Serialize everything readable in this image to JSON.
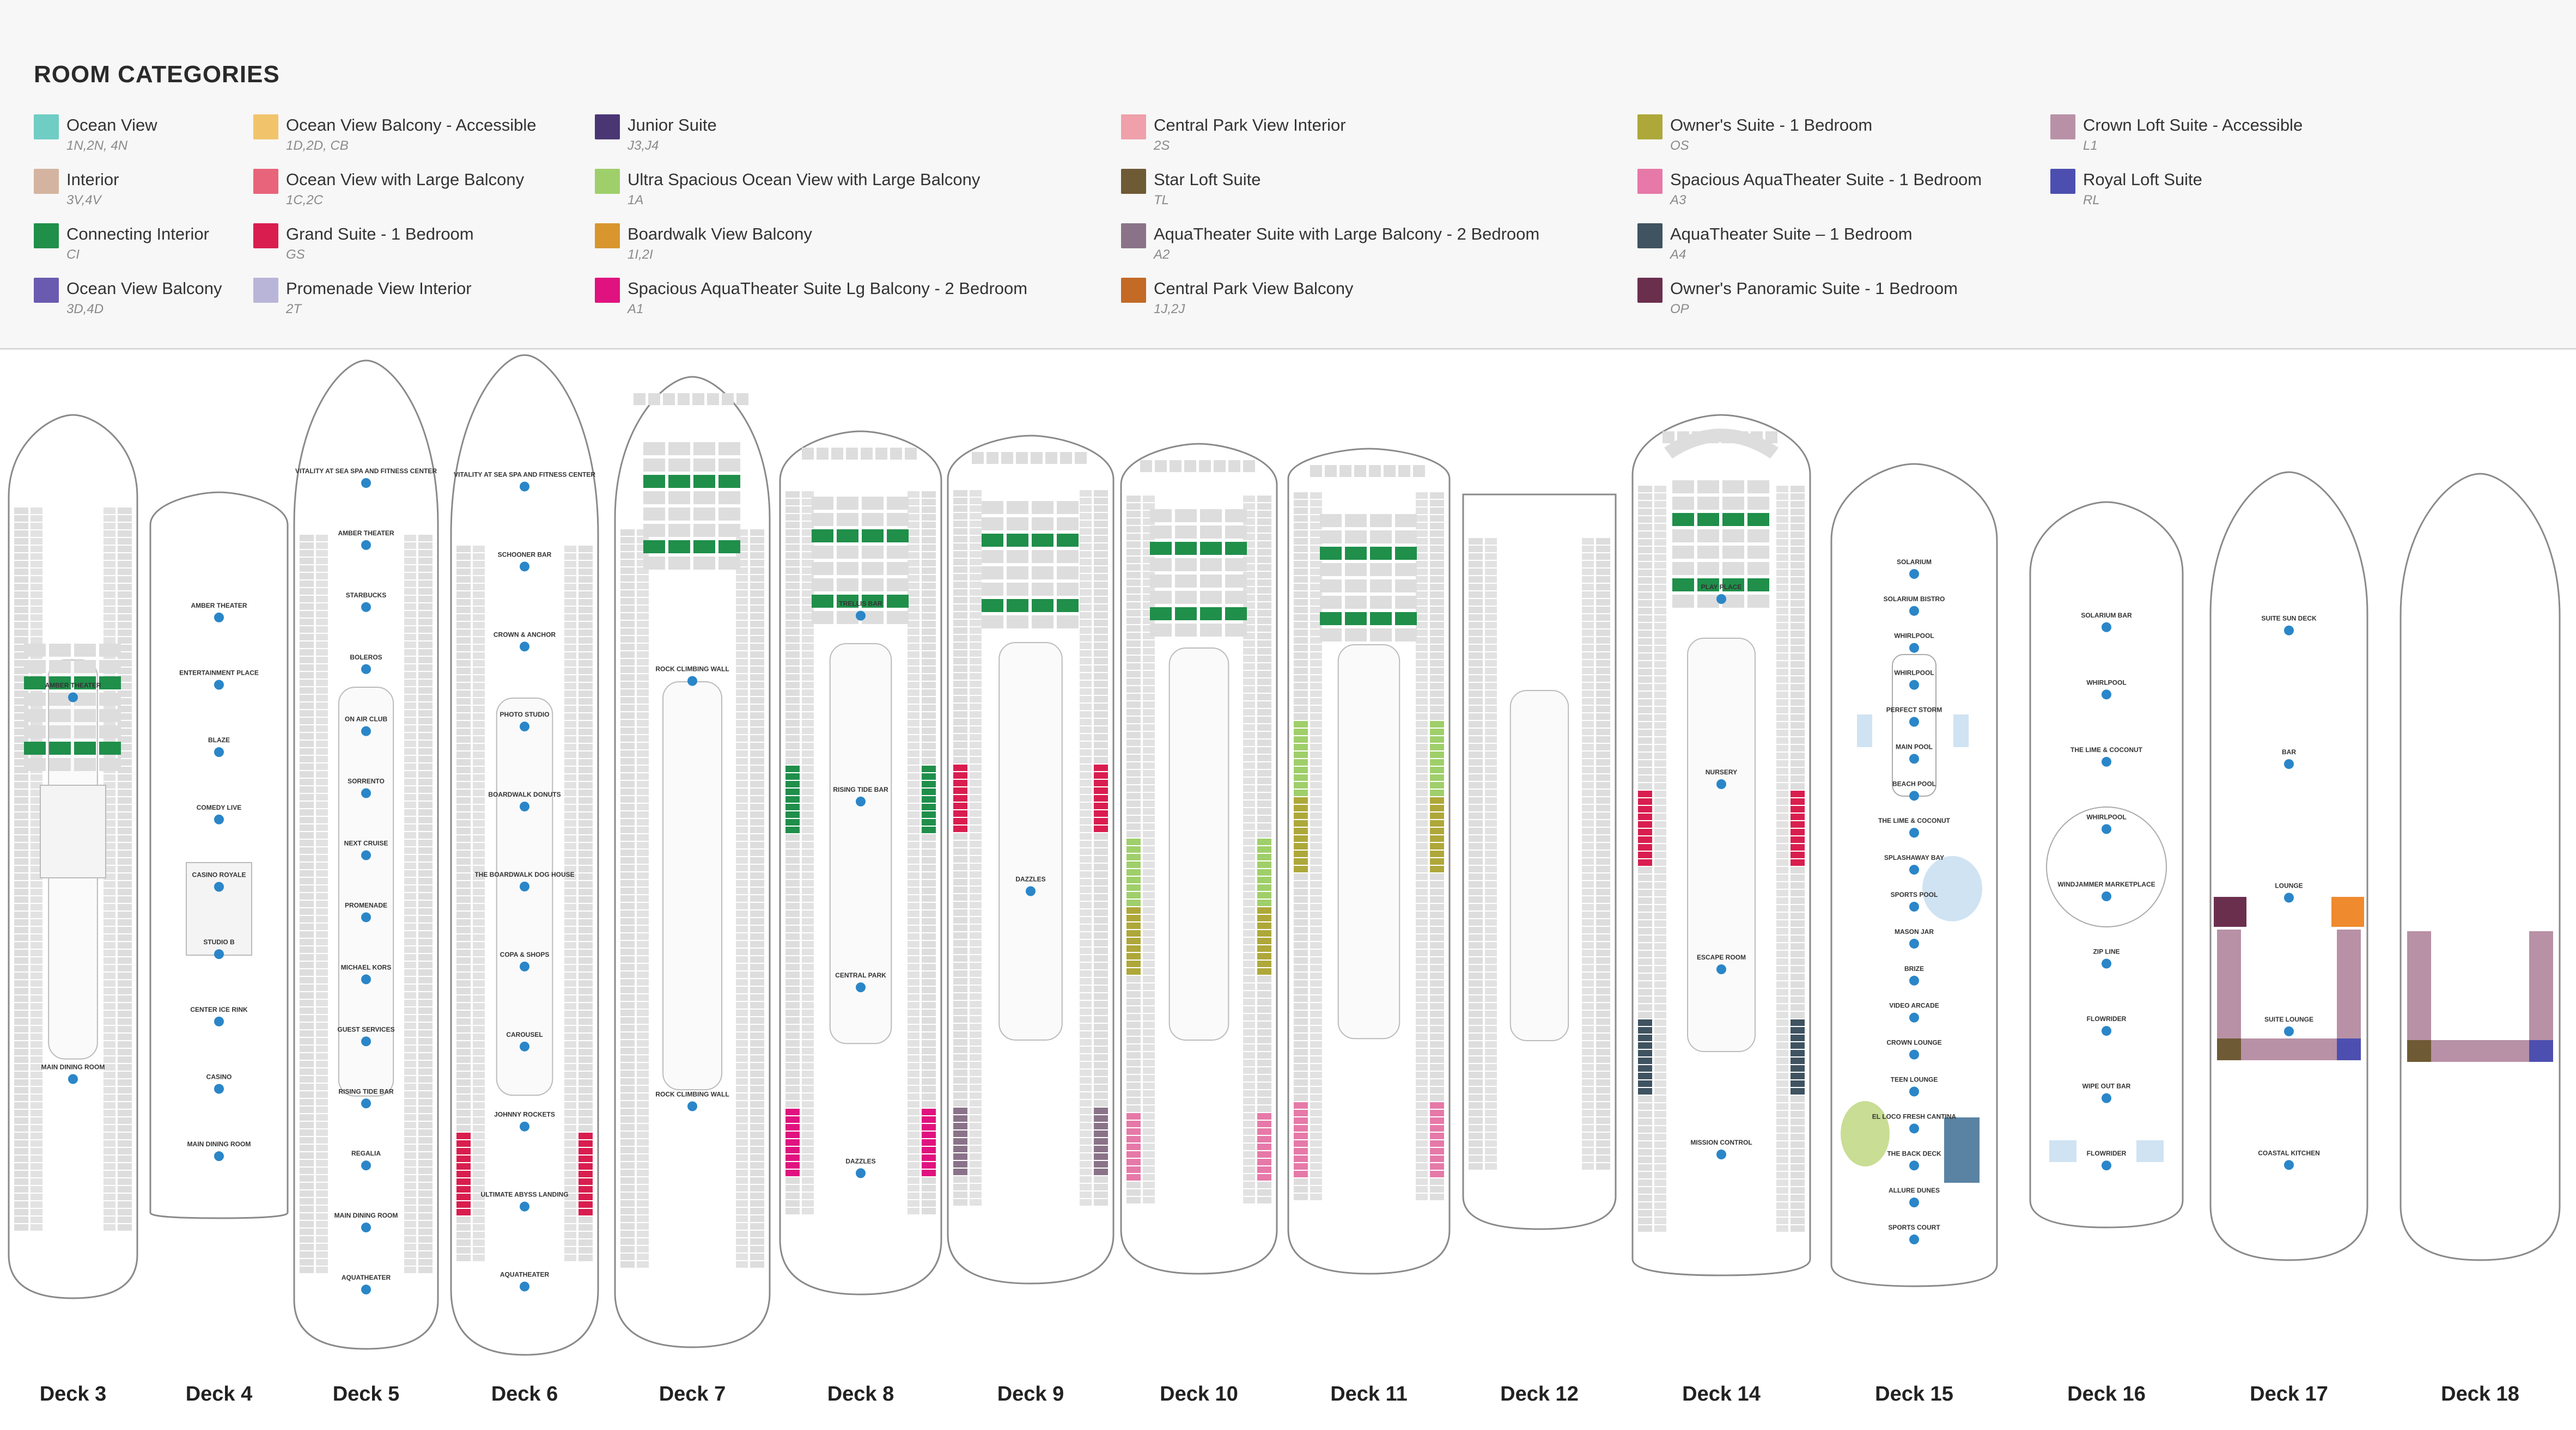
{
  "legend": {
    "title": "ROOM CATEGORIES",
    "categories": [
      {
        "name": "Ocean View",
        "code": "1N,2N, 4N",
        "color": "#6fcdc4"
      },
      {
        "name": "Interior",
        "code": "3V,4V",
        "color": "#d4b4a0"
      },
      {
        "name": "Connecting Interior",
        "code": "CI",
        "color": "#1f8f4a"
      },
      {
        "name": "Ocean View Balcony",
        "code": "3D,4D",
        "color": "#6a5bb0"
      },
      {
        "name": "Ocean View Balcony - Accessible",
        "code": "1D,2D, CB",
        "color": "#f1c46c"
      },
      {
        "name": "Ocean View with Large Balcony",
        "code": "1C,2C",
        "color": "#e8647a"
      },
      {
        "name": "Grand Suite - 1 Bedroom",
        "code": "GS",
        "color": "#d91e4f"
      },
      {
        "name": "Promenade View Interior",
        "code": "2T",
        "color": "#b9b5d8"
      },
      {
        "name": "Junior Suite",
        "code": "J3,J4",
        "color": "#4b3674"
      },
      {
        "name": "Ultra Spacious Ocean View with Large Balcony",
        "code": "1A",
        "color": "#9fcf6a"
      },
      {
        "name": "Boardwalk View Balcony",
        "code": "1I,2I",
        "color": "#d9962f"
      },
      {
        "name": "Spacious AquaTheater Suite Lg Balcony - 2 Bedroom",
        "code": "A1",
        "color": "#e0127f"
      },
      {
        "name": "Central Park View Interior",
        "code": "2S",
        "color": "#efa0aa"
      },
      {
        "name": "Star Loft Suite",
        "code": "TL",
        "color": "#6e5a35"
      },
      {
        "name": "AquaTheater Suite with Large Balcony - 2 Bedroom",
        "code": "A2",
        "color": "#8a7389"
      },
      {
        "name": "Central Park View Balcony",
        "code": "1J,2J",
        "color": "#c26a26"
      },
      {
        "name": "Owner's Suite - 1 Bedroom",
        "code": "OS",
        "color": "#aea83a"
      },
      {
        "name": "Spacious AquaTheater Suite - 1 Bedroom",
        "code": "A3",
        "color": "#e679a8"
      },
      {
        "name": "AquaTheater Suite – 1 Bedroom",
        "code": "A4",
        "color": "#3f5360"
      },
      {
        "name": "Owner's Panoramic Suite - 1 Bedroom",
        "code": "OP",
        "color": "#6b2f4e"
      },
      {
        "name": "Crown Loft Suite - Accessible",
        "code": "L1",
        "color": "#b891a6"
      },
      {
        "name": "Royal Loft Suite",
        "code": "RL",
        "color": "#4d4fb0"
      }
    ]
  },
  "decks": [
    {
      "label": "Deck 3",
      "places": [
        "AMBER THEATER",
        "MAIN DINING ROOM"
      ]
    },
    {
      "label": "Deck 4",
      "places": [
        "AMBER THEATER",
        "ENTERTAINMENT PLACE",
        "BLAZE",
        "COMEDY LIVE",
        "CASINO ROYALE",
        "STUDIO B",
        "CENTER ICE RINK",
        "CASINO",
        "MAIN DINING ROOM"
      ]
    },
    {
      "label": "Deck 5",
      "places": [
        "VITALITY AT SEA SPA AND FITNESS CENTER",
        "AMBER THEATER",
        "STARBUCKS",
        "BOLEROS",
        "ON AIR CLUB",
        "SORRENTO",
        "NEXT CRUISE",
        "PROMENADE",
        "MICHAEL KORS",
        "GUEST SERVICES",
        "RISING TIDE BAR",
        "REGALIA",
        "MAIN DINING ROOM",
        "AQUATHEATER"
      ]
    },
    {
      "label": "Deck 6",
      "places": [
        "VITALITY AT SEA SPA AND FITNESS CENTER",
        "SCHOONER BAR",
        "CROWN & ANCHOR",
        "PHOTO STUDIO",
        "BOARDWALK DONUTS",
        "THE BOARDWALK DOG HOUSE",
        "COPA & SHOPS",
        "CAROUSEL",
        "JOHNNY ROCKETS",
        "ULTIMATE ABYSS LANDING",
        "AQUATHEATER"
      ]
    },
    {
      "label": "Deck 7",
      "places": [
        "ROCK CLIMBING WALL",
        "ROCK CLIMBING WALL"
      ]
    },
    {
      "label": "Deck 8",
      "places": [
        "TRELLIS BAR",
        "RISING TIDE BAR",
        "CENTRAL PARK",
        "DAZZLES"
      ]
    },
    {
      "label": "Deck 9",
      "places": [
        "DAZZLES"
      ]
    },
    {
      "label": "Deck 10",
      "places": []
    },
    {
      "label": "Deck 11",
      "places": []
    },
    {
      "label": "Deck 12",
      "places": []
    },
    {
      "label": "Deck 14",
      "places": [
        "PLAY PLACE",
        "NURSERY",
        "ESCAPE ROOM",
        "MISSION CONTROL"
      ]
    },
    {
      "label": "Deck 15",
      "places": [
        "SOLARIUM",
        "SOLARIUM BISTRO",
        "WHIRLPOOL",
        "WHIRLPOOL",
        "PERFECT STORM",
        "MAIN POOL",
        "BEACH POOL",
        "THE LIME & COCONUT",
        "SPLASHAWAY BAY",
        "SPORTS POOL",
        "MASON JAR",
        "BRIZE",
        "VIDEO ARCADE",
        "CROWN LOUNGE",
        "TEEN LOUNGE",
        "EL LOCO FRESH CANTINA",
        "THE BACK DECK",
        "ALLURE DUNES",
        "SPORTS COURT"
      ]
    },
    {
      "label": "Deck 16",
      "places": [
        "SOLARIUM BAR",
        "WHIRLPOOL",
        "THE LIME & COCONUT",
        "WHIRLPOOL",
        "WINDJAMMER MARKETPLACE",
        "ZIP LINE",
        "FLOWRIDER",
        "WIPE OUT BAR",
        "FLOWRIDER"
      ]
    },
    {
      "label": "Deck 17",
      "places": [
        "SUITE SUN DECK",
        "BAR",
        "LOUNGE",
        "SUITE LOUNGE",
        "COASTAL KITCHEN"
      ]
    },
    {
      "label": "Deck 18",
      "places": []
    }
  ]
}
